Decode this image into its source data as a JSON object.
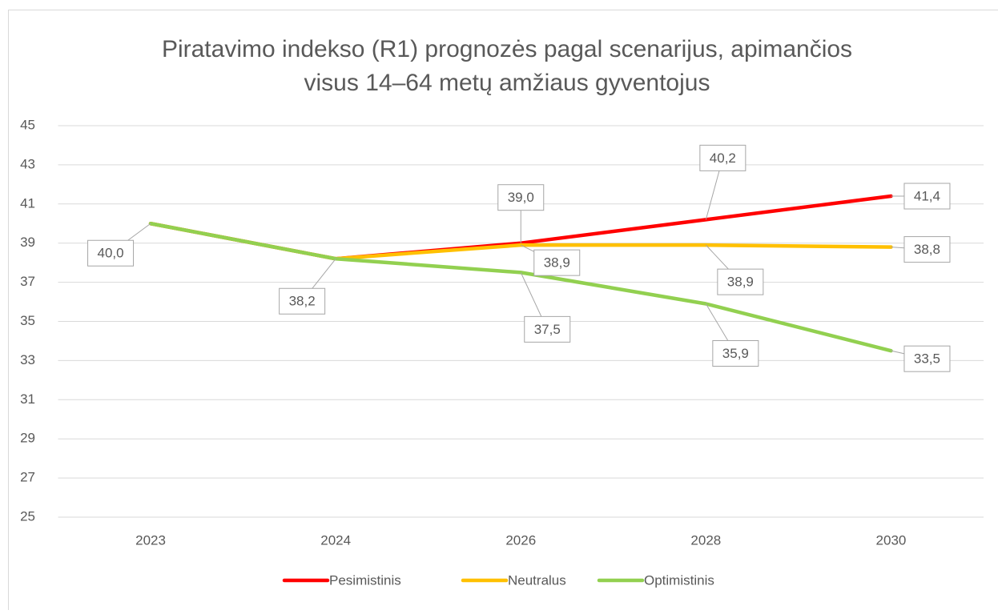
{
  "chart_data": {
    "type": "line",
    "title": [
      "Piratavimo indekso (R1) prognozės pagal scenarijus, apimančios",
      "visus 14–64 metų amžiaus gyventojus"
    ],
    "categories": [
      "2023",
      "2024",
      "2026",
      "2028",
      "2030"
    ],
    "series": [
      {
        "name": "Pesimistinis",
        "color": "#ff0000",
        "values": [
          40.0,
          38.2,
          39.0,
          40.2,
          41.4
        ],
        "value_labels": [
          null,
          null,
          "39,0",
          "40,2",
          "41,4"
        ]
      },
      {
        "name": "Neutralus",
        "color": "#ffc000",
        "values": [
          40.0,
          38.2,
          38.9,
          38.9,
          38.8
        ],
        "value_labels": [
          null,
          null,
          "38,9",
          "38,9",
          "38,8"
        ]
      },
      {
        "name": "Optimistinis",
        "color": "#92d050",
        "values": [
          40.0,
          38.2,
          37.5,
          35.9,
          33.5
        ],
        "value_labels": [
          "40,0",
          "38,2",
          "37,5",
          "35,9",
          "33,5"
        ]
      }
    ],
    "ylim": [
      25,
      45
    ],
    "yticks": [
      25,
      27,
      29,
      31,
      33,
      35,
      37,
      39,
      41,
      43,
      45
    ],
    "grid": true,
    "legend": "bottom"
  }
}
